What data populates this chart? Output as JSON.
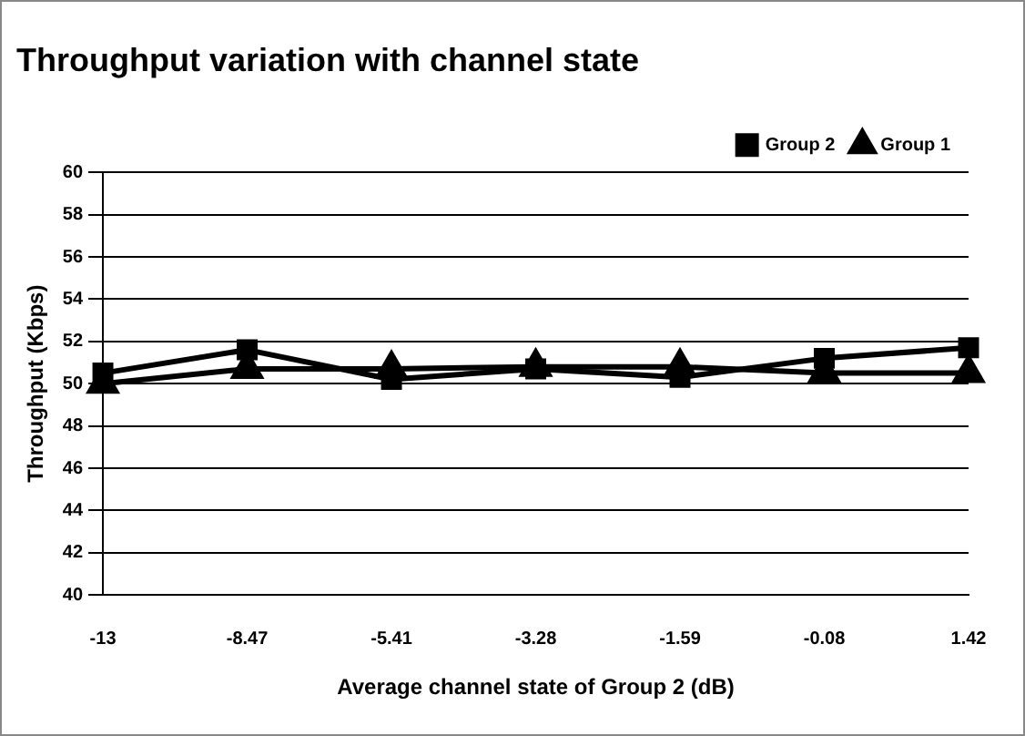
{
  "chart_data": {
    "type": "line",
    "title": "Throughput variation with channel state",
    "xlabel": "Average channel state of Group 2 (dB)",
    "ylabel": "Throughput (Kbps)",
    "categories": [
      "-13",
      "-8.47",
      "-5.41",
      "-3.28",
      "-1.59",
      "-0.08",
      "1.42"
    ],
    "series": [
      {
        "name": "Group 2",
        "color": "#000000",
        "marker": "square",
        "values": [
          50.5,
          51.6,
          50.2,
          50.7,
          50.3,
          51.2,
          51.7
        ]
      },
      {
        "name": "Group 1",
        "color": "#000000",
        "marker": "triangle",
        "values": [
          50.0,
          50.7,
          50.7,
          50.8,
          50.8,
          50.5,
          50.5
        ]
      }
    ],
    "ylim": [
      40,
      60
    ],
    "yticks": [
      40,
      42,
      44,
      46,
      48,
      50,
      52,
      54,
      56,
      58,
      60
    ],
    "grid": "y",
    "legend": "top right"
  }
}
